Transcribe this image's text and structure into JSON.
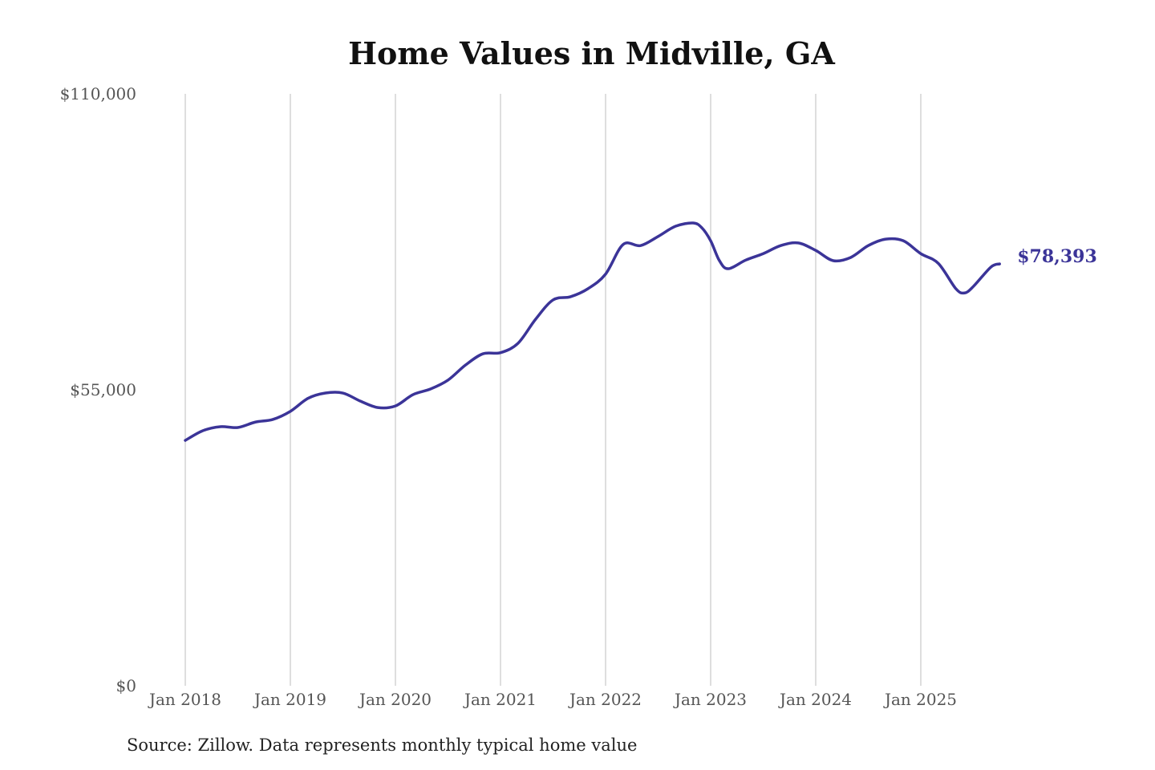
{
  "chart_data": {
    "type": "line",
    "title": "Home Values in Midville, GA",
    "source": "Source: Zillow. Data represents monthly typical home value",
    "xlabel": "",
    "ylabel": "",
    "ylim": [
      0,
      110000
    ],
    "y_ticks": [
      0,
      55000,
      110000
    ],
    "y_tick_labels": [
      "$0",
      "$55,000",
      "$110,000"
    ],
    "x_tick_labels": [
      "Jan 2018",
      "Jan 2019",
      "Jan 2020",
      "Jan 2021",
      "Jan 2022",
      "Jan 2023",
      "Jan 2024",
      "Jan 2025"
    ],
    "grid": "vertical",
    "line_color": "#3b3498",
    "end_label": "$78,393",
    "series": [
      {
        "x": [
          "2018-01",
          "2018-03",
          "2018-05",
          "2018-07",
          "2018-09",
          "2018-11",
          "2019-01",
          "2019-03",
          "2019-05",
          "2019-07",
          "2019-09",
          "2019-11",
          "2020-01",
          "2020-03",
          "2020-05",
          "2020-07",
          "2020-09",
          "2020-11",
          "2021-01",
          "2021-03",
          "2021-05",
          "2021-07",
          "2021-09",
          "2021-11",
          "2022-01",
          "2022-03",
          "2022-05",
          "2022-07",
          "2022-09",
          "2022-11",
          "2022-12",
          "2023-01",
          "2023-02",
          "2023-03",
          "2023-05",
          "2023-07",
          "2023-09",
          "2023-11",
          "2024-01",
          "2024-03",
          "2024-05",
          "2024-07",
          "2024-09",
          "2024-11",
          "2025-01",
          "2025-03",
          "2025-05",
          "2025-06",
          "2025-07",
          "2025-09",
          "2025-10"
        ],
        "values": [
          45600,
          47400,
          48150,
          48000,
          49000,
          49500,
          51000,
          53400,
          54400,
          54400,
          52900,
          51700,
          52000,
          54100,
          55150,
          56800,
          59600,
          61700,
          61900,
          63650,
          68100,
          71700,
          72300,
          73800,
          76500,
          82000,
          81800,
          83500,
          85400,
          86000,
          85100,
          82700,
          79000,
          77500,
          79100,
          80300,
          81800,
          82300,
          80900,
          79000,
          79600,
          81800,
          83000,
          82700,
          80300,
          78500,
          73800,
          73000,
          74200,
          77800,
          78393
        ]
      }
    ]
  }
}
